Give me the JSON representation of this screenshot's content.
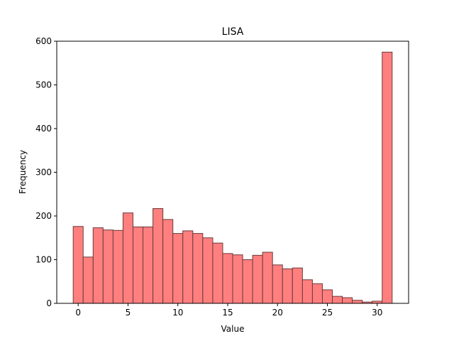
{
  "chart_data": {
    "type": "bar",
    "title": "LISA",
    "xlabel": "Value",
    "ylabel": "Frequency",
    "xlim": [
      -2.15,
      33.15
    ],
    "ylim": [
      0,
      600
    ],
    "xticks": [
      0,
      5,
      10,
      15,
      20,
      25,
      30
    ],
    "yticks": [
      0,
      100,
      200,
      300,
      400,
      500,
      600
    ],
    "bin_width": 1,
    "bins_start": [
      -0.5,
      0.5,
      1.5,
      2.5,
      3.5,
      4.5,
      5.5,
      6.5,
      7.5,
      8.5,
      9.5,
      10.5,
      11.5,
      12.5,
      13.5,
      14.5,
      15.5,
      16.5,
      17.5,
      18.5,
      19.5,
      20.5,
      21.5,
      22.5,
      23.5,
      24.5,
      25.5,
      26.5,
      27.5,
      28.5,
      29.5,
      30.5
    ],
    "values": [
      176,
      106,
      173,
      168,
      167,
      207,
      175,
      175,
      217,
      192,
      160,
      166,
      160,
      150,
      138,
      114,
      111,
      100,
      110,
      117,
      88,
      79,
      81,
      54,
      45,
      31,
      16,
      13,
      7,
      3,
      5,
      575
    ],
    "grid": false,
    "bar_color": "#ff7f7f",
    "edge_color": "#6b3a3a"
  }
}
